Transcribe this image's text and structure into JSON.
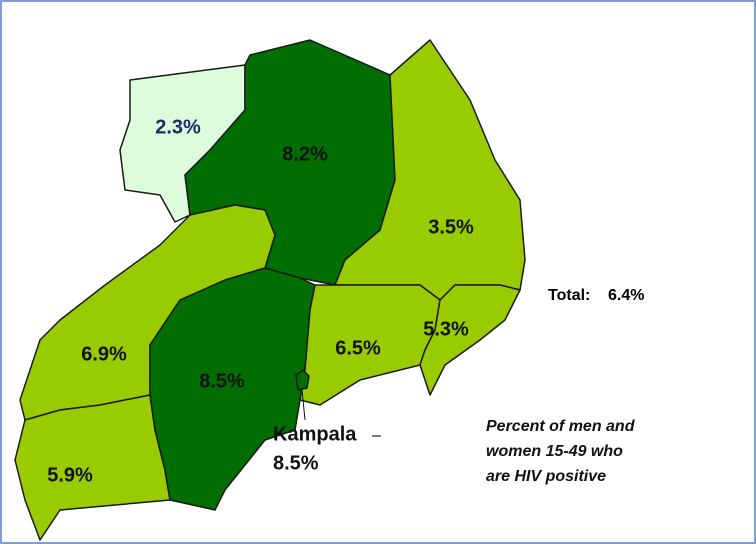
{
  "regions": [
    {
      "label": "2.3%"
    },
    {
      "label": "8.2%"
    },
    {
      "label": "3.5%"
    },
    {
      "label": "6.9%"
    },
    {
      "label": "5.9%"
    },
    {
      "label": "8.5%"
    },
    {
      "label": "6.5%"
    },
    {
      "label": "5.3%"
    }
  ],
  "kampala": {
    "name": "Kampala",
    "dash": "–",
    "label": "8.5%"
  },
  "total": {
    "name": "Total:",
    "label": "6.4%"
  },
  "caption": [
    "Percent of men and",
    "women 15-49 who",
    "are HIV positive"
  ]
}
